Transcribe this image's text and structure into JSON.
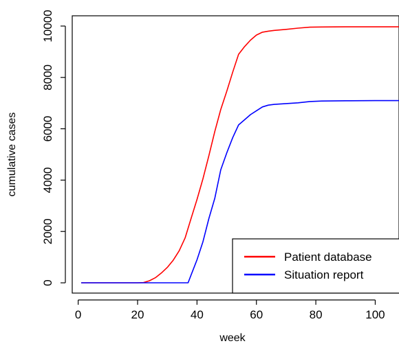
{
  "chart_data": {
    "type": "line",
    "title": "",
    "xlabel": "week",
    "ylabel": "cumulative cases",
    "xlim": [
      -2,
      108
    ],
    "ylim": [
      -400,
      10400
    ],
    "x_ticks": [
      0,
      20,
      40,
      60,
      80,
      100
    ],
    "y_ticks": [
      0,
      2000,
      4000,
      6000,
      8000,
      10000
    ],
    "grid": false,
    "legend_position": "bottom-right",
    "series": [
      {
        "name": "Patient database",
        "color": "#ff0000",
        "points": [
          [
            1,
            0
          ],
          [
            10,
            0
          ],
          [
            20,
            0
          ],
          [
            22,
            10
          ],
          [
            24,
            80
          ],
          [
            26,
            200
          ],
          [
            28,
            380
          ],
          [
            30,
            600
          ],
          [
            32,
            880
          ],
          [
            34,
            1250
          ],
          [
            36,
            1750
          ],
          [
            38,
            2500
          ],
          [
            40,
            3250
          ],
          [
            42,
            4050
          ],
          [
            44,
            4950
          ],
          [
            46,
            5900
          ],
          [
            48,
            6750
          ],
          [
            50,
            7450
          ],
          [
            52,
            8200
          ],
          [
            54,
            8900
          ],
          [
            56,
            9200
          ],
          [
            58,
            9450
          ],
          [
            60,
            9650
          ],
          [
            62,
            9760
          ],
          [
            64,
            9800
          ],
          [
            66,
            9830
          ],
          [
            70,
            9870
          ],
          [
            74,
            9920
          ],
          [
            78,
            9955
          ],
          [
            82,
            9965
          ],
          [
            90,
            9970
          ],
          [
            100,
            9970
          ],
          [
            108,
            9970
          ]
        ]
      },
      {
        "name": "Situation report",
        "color": "#0000ff",
        "points": [
          [
            1,
            0
          ],
          [
            10,
            0
          ],
          [
            20,
            0
          ],
          [
            30,
            0
          ],
          [
            36,
            0
          ],
          [
            37,
            0
          ],
          [
            38,
            300
          ],
          [
            40,
            900
          ],
          [
            42,
            1600
          ],
          [
            44,
            2500
          ],
          [
            46,
            3300
          ],
          [
            48,
            4400
          ],
          [
            50,
            5050
          ],
          [
            52,
            5650
          ],
          [
            54,
            6150
          ],
          [
            56,
            6350
          ],
          [
            58,
            6550
          ],
          [
            60,
            6700
          ],
          [
            62,
            6850
          ],
          [
            64,
            6920
          ],
          [
            66,
            6950
          ],
          [
            70,
            6980
          ],
          [
            74,
            7010
          ],
          [
            78,
            7060
          ],
          [
            82,
            7080
          ],
          [
            90,
            7090
          ],
          [
            100,
            7095
          ],
          [
            108,
            7095
          ]
        ]
      }
    ]
  }
}
